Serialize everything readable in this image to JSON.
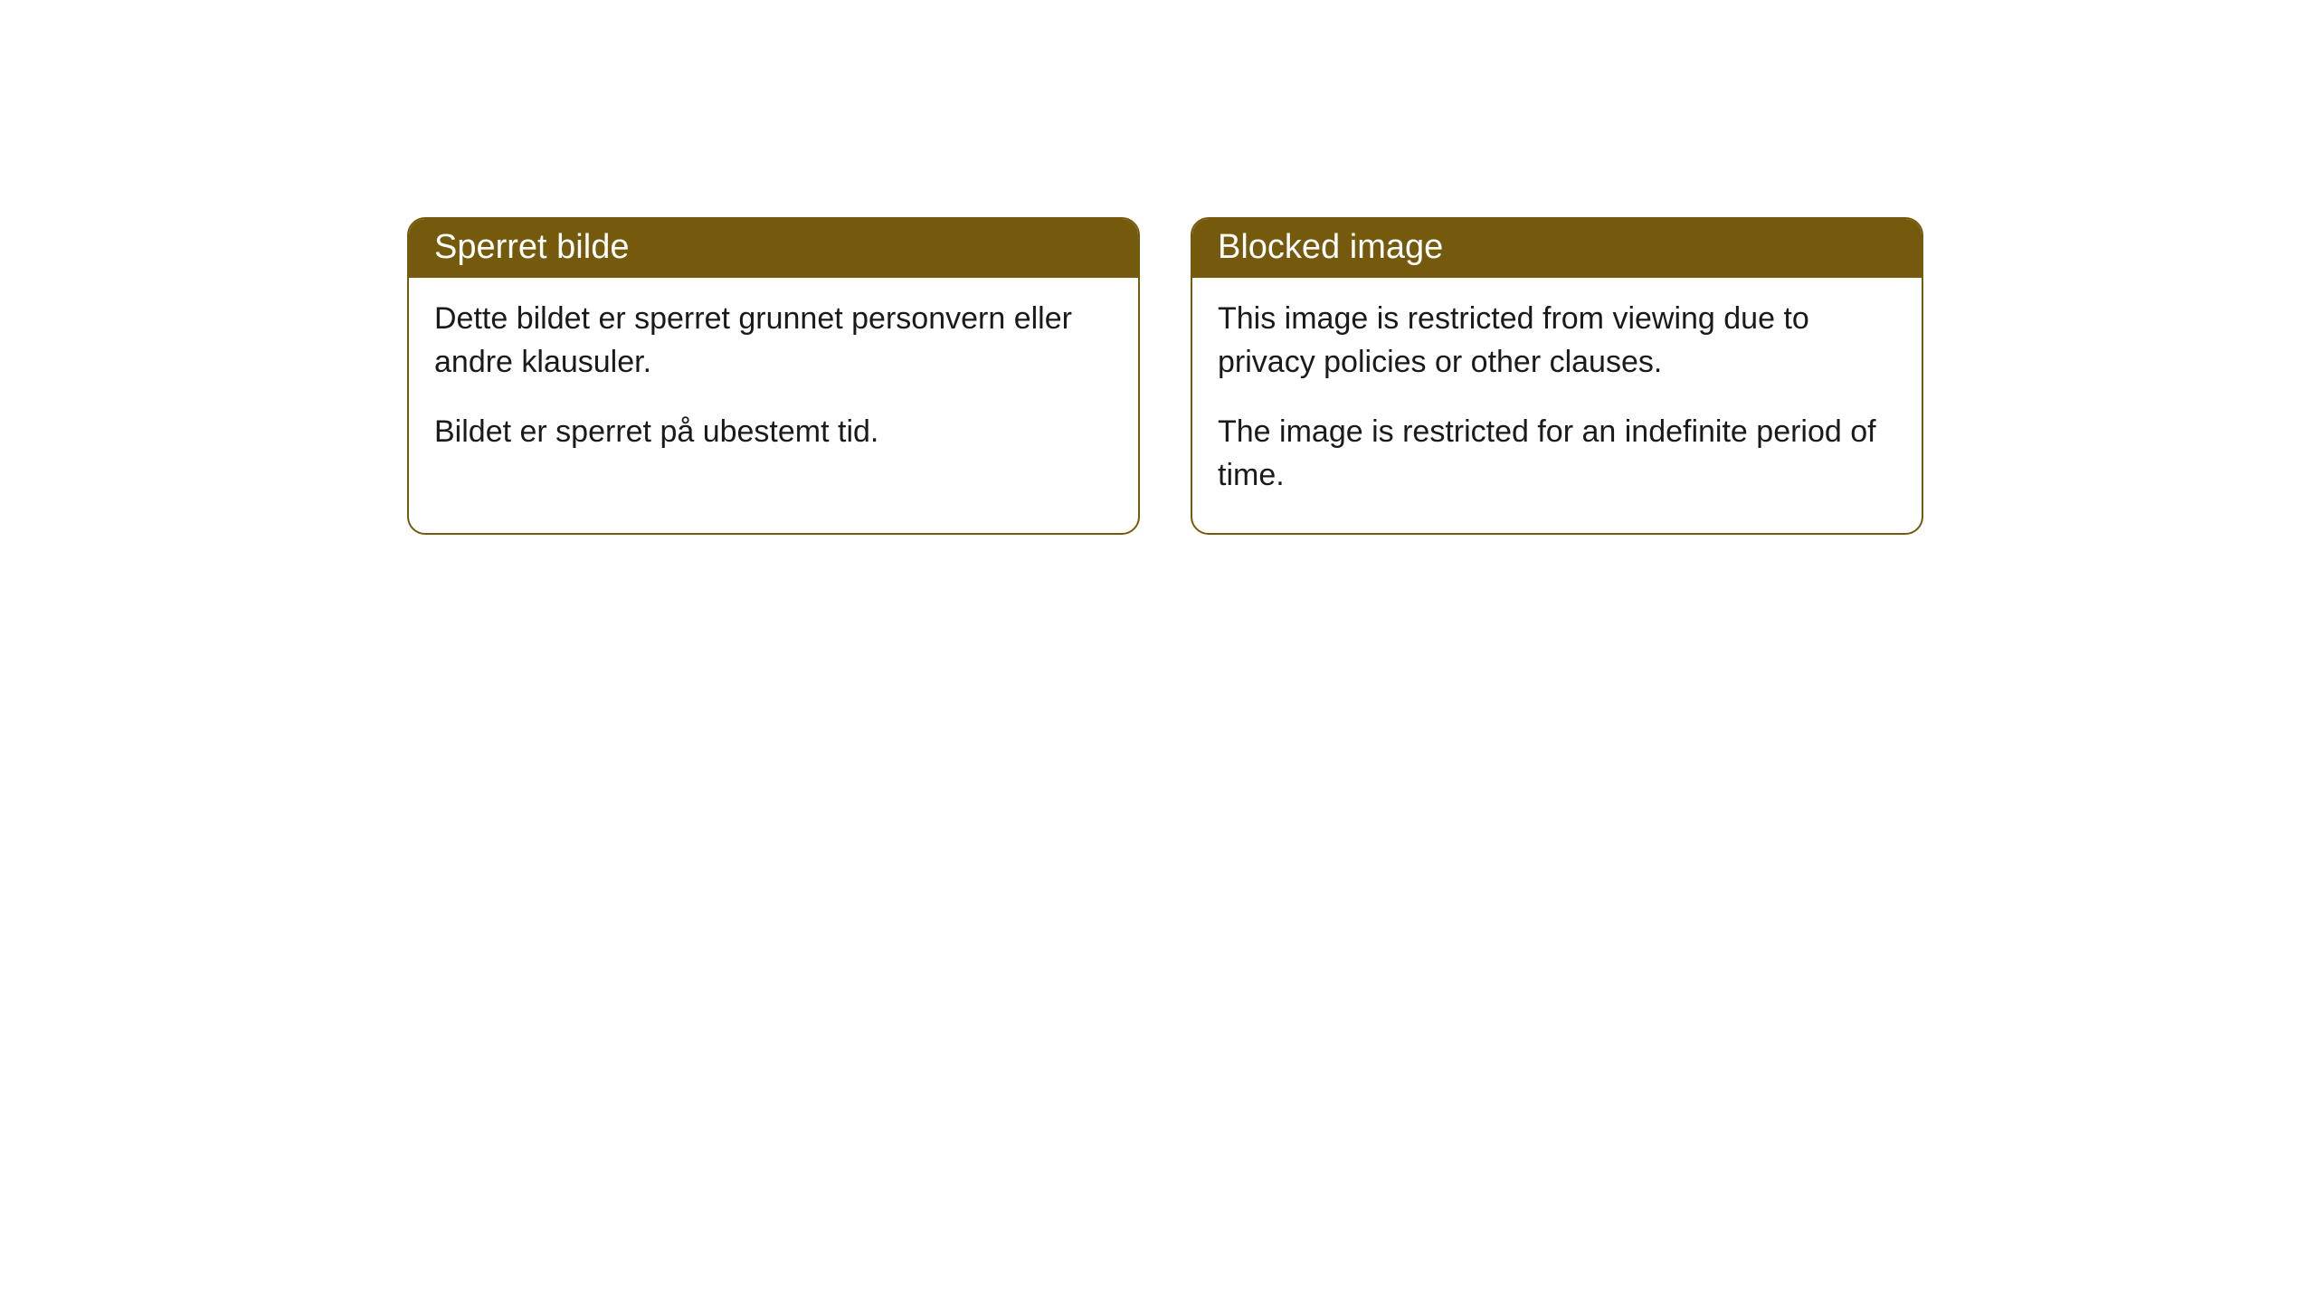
{
  "cards": [
    {
      "title": "Sperret bilde",
      "paragraph1": "Dette bildet er sperret grunnet personvern eller andre klausuler.",
      "paragraph2": "Bildet er sperret på ubestemt tid."
    },
    {
      "title": "Blocked image",
      "paragraph1": "This image is restricted from viewing due to privacy policies or other clauses.",
      "paragraph2": "The image is restricted for an indefinite period of time."
    }
  ],
  "style": {
    "accent_color": "#755a0e",
    "background_color": "#ffffff",
    "text_color": "#1a1a1a",
    "header_text_color": "#ffffff",
    "border_radius": 20,
    "title_fontsize": 38,
    "body_fontsize": 34
  }
}
